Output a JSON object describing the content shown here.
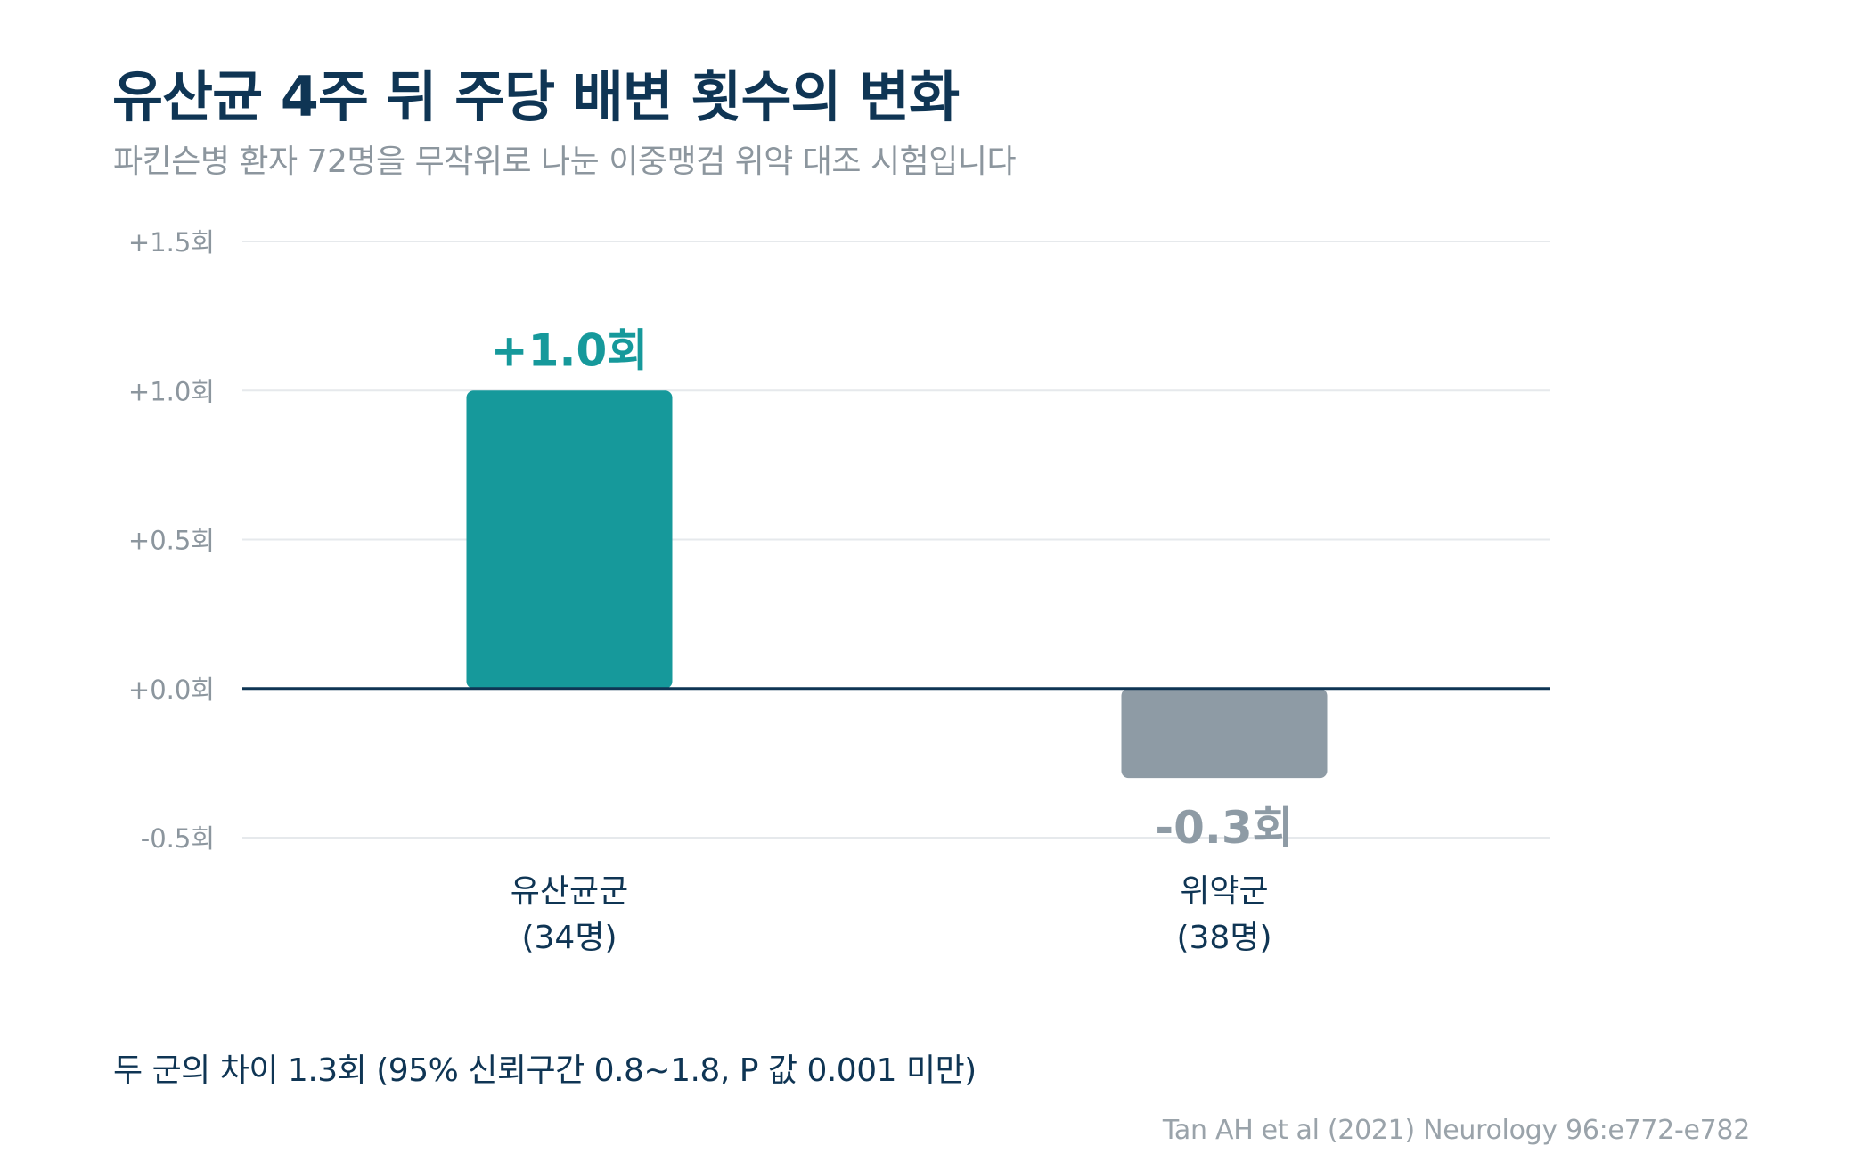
{
  "title": "유산균 4주 뒤 주당 배변 횟수의 변화",
  "subtitle": "파킨슨병 환자 72명을 무작위로 나눈 이중맹검 위약 대조 시험입니다",
  "footnote": "두 군의 차이 1.3회 (95% 신뢰구간 0.8~1.8, P 값 0.001 미만)",
  "source": "Tan AH et al (2021) Neurology 96:e772-e782",
  "colors": {
    "probiotic": "#16999b",
    "placebo": "#8e9ba5",
    "title": "#0f3554",
    "axis_text": "#8c969e",
    "grid": "#e6e9ec",
    "zero_line": "#0f3554"
  },
  "chart_data": {
    "type": "bar",
    "title": "유산균 4주 뒤 주당 배변 횟수의 변화",
    "subtitle": "파킨슨병 환자 72명을 무작위로 나눈 이중맹검 위약 대조 시험입니다",
    "categories": [
      "유산균군",
      "위약군"
    ],
    "category_lines": [
      [
        "유산균군",
        "(34명)"
      ],
      [
        "위약군",
        "(38명)"
      ]
    ],
    "values": [
      1.0,
      -0.3
    ],
    "value_labels": [
      "+1.0회",
      "-0.3회"
    ],
    "bar_colors": [
      "#16999b",
      "#8e9ba5"
    ],
    "label_colors": [
      "#16999b",
      "#8e9ba5"
    ],
    "ylim": [
      -0.5,
      1.5
    ],
    "yticks": [
      1.5,
      1.0,
      0.5,
      0.0,
      -0.5
    ],
    "ytick_labels": [
      "+1.5회",
      "+1.0회",
      "+0.5회",
      "+0.0회",
      "-0.5회"
    ],
    "xlabel": "",
    "ylabel": "",
    "grid": true,
    "zero_line": true
  }
}
